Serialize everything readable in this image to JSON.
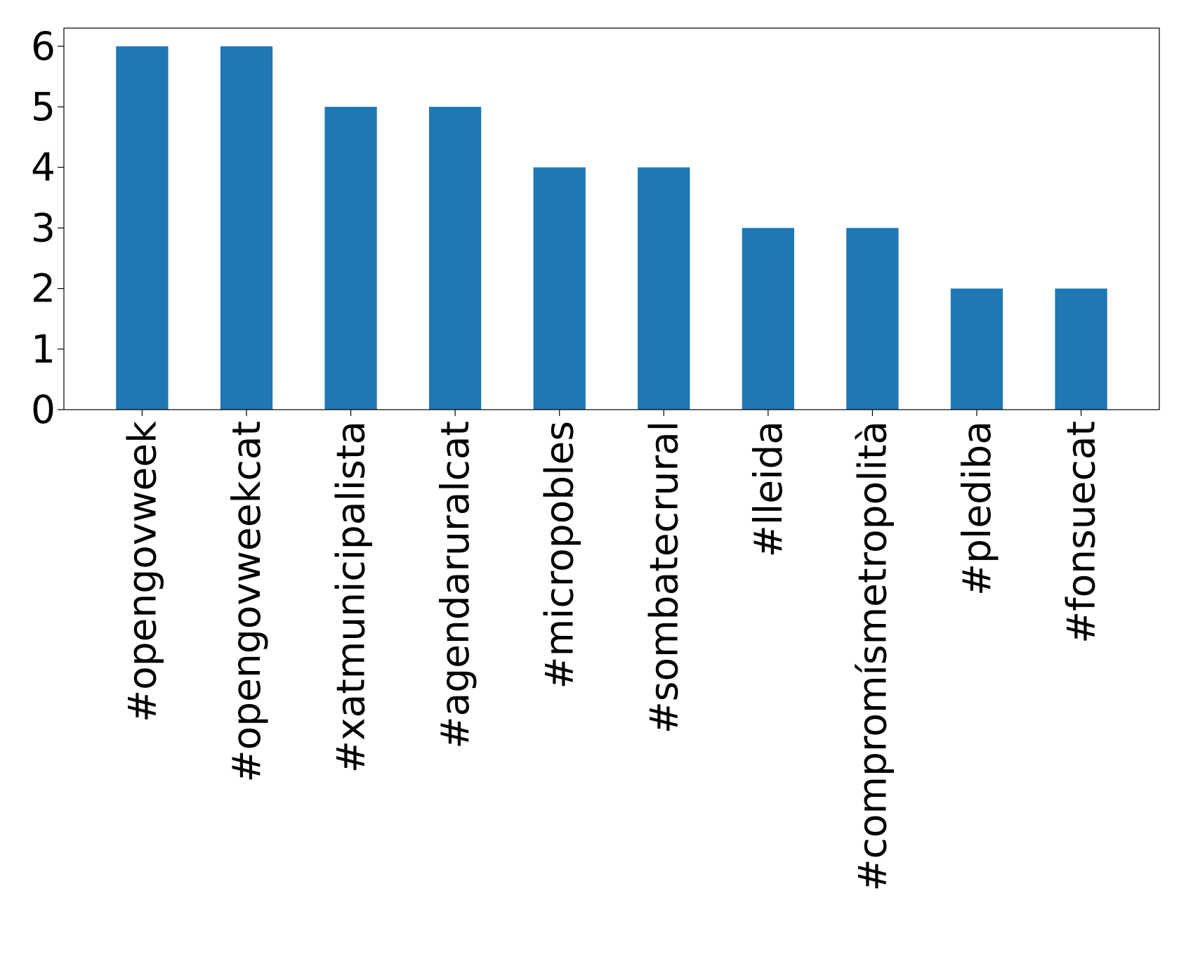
{
  "chart_data": {
    "type": "bar",
    "title": "",
    "xlabel": "",
    "ylabel": "",
    "categories": [
      "#opengovweek",
      "#opengovweekcat",
      "#xatmunicipalista",
      "#agendaruralcat",
      "#micropobles",
      "#sombatecrural",
      "#lleida",
      "#compromísmetropolità",
      "#plediba",
      "#fonsuecat"
    ],
    "values": [
      6,
      6,
      5,
      5,
      4,
      4,
      3,
      3,
      2,
      2
    ],
    "ylim": [
      0,
      6.3
    ],
    "yticks": [
      0,
      1,
      2,
      3,
      4,
      5,
      6
    ],
    "grid": false,
    "legend": "none",
    "colors": {
      "bar": "#1f77b4",
      "axis": "#000000",
      "text": "#000000",
      "background": "#ffffff"
    }
  }
}
